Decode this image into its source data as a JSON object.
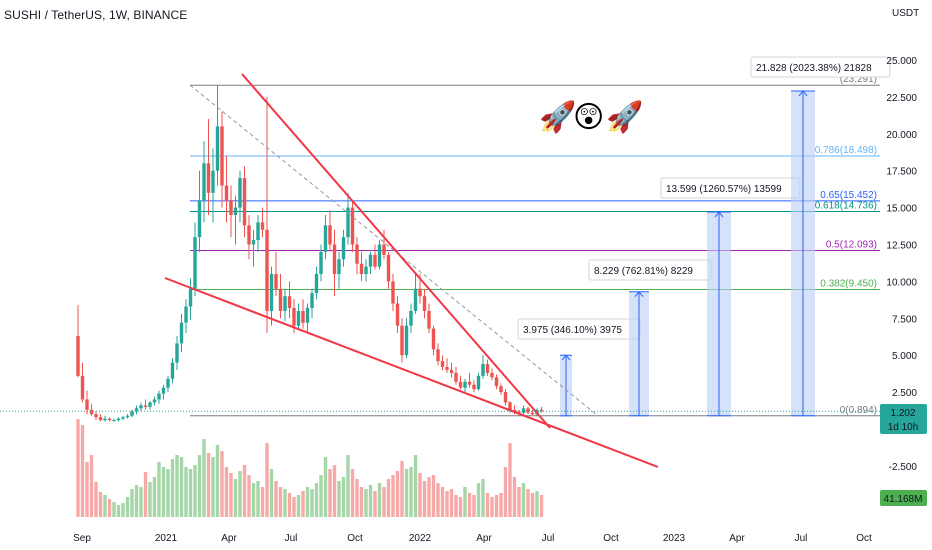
{
  "header": {
    "title": "SUSHI / TetherUS, 1W, BINANCE",
    "unit": "USDT"
  },
  "emoji": [
    "🚀",
    "😲",
    "🚀"
  ],
  "price_badge": {
    "price": "1.202",
    "countdown": "1d 10h"
  },
  "volume_badge": "41.168M",
  "colors": {
    "up": "#26a69a",
    "down": "#ef5350",
    "vol_up": "#a5d6a7",
    "vol_down": "#f7a9a7",
    "trend": "#f23645",
    "target": "#2962ff",
    "target_fill": "#bbcff7",
    "fib_0": "#787b86",
    "fib_0382": "#4caf50",
    "fib_05": "#9c27b0",
    "fib_0618": "#009688",
    "fib_065": "#2962ff",
    "fib_0786": "#64b5f6",
    "fib_1": "#787b86",
    "badge_price": "#26a69a",
    "badge_volume": "#4caf50"
  },
  "chart_data": {
    "type": "candlestick",
    "symbol": "SUSHI / TetherUS",
    "interval": "1W",
    "exchange": "BINANCE",
    "y_unit": "USDT",
    "y_ticks": [
      "25.000",
      "22.500",
      "20.000",
      "17.500",
      "15.000",
      "12.500",
      "10.000",
      "7.500",
      "5.000",
      "2.500",
      "-2.500"
    ],
    "x_ticks": [
      "Sep",
      "2021",
      "Apr",
      "Jul",
      "Oct",
      "2022",
      "Apr",
      "Jul",
      "Oct",
      "2023",
      "Apr",
      "Jul",
      "Oct"
    ],
    "current_price": 1.202,
    "fib_levels": [
      {
        "ratio": "0",
        "price": "0.894",
        "label": "0(0.894)"
      },
      {
        "ratio": "0.382",
        "price": "9.450",
        "label": "0.382(9.450)"
      },
      {
        "ratio": "0.5",
        "price": "12.093",
        "label": "0.5(12.093)"
      },
      {
        "ratio": "0.618",
        "price": "14.736",
        "label": "0.618(14.736)"
      },
      {
        "ratio": "0.65",
        "price": "15.452",
        "label": "0.65(15.452)"
      },
      {
        "ratio": "0.786",
        "price": "18.498",
        "label": "0.786(18.498)"
      },
      {
        "ratio": "1",
        "price": "23.291",
        "label": "(23.291)"
      }
    ],
    "targets": [
      {
        "label": "3.975 (346.10%) 3975",
        "base": 0.894,
        "top": 5.0
      },
      {
        "label": "8.229 (762.81%) 8229",
        "base": 0.894,
        "top": 9.3
      },
      {
        "label": "13.599 (1260.57%) 13599",
        "base": 0.894,
        "top": 14.7
      },
      {
        "label": "21.828 (2023.38%) 21828",
        "base": 0.894,
        "top": 22.9
      }
    ],
    "candles": [
      [
        6.3,
        8.4,
        3.5,
        3.6
      ],
      [
        3.6,
        4.5,
        1.8,
        2.0
      ],
      [
        2.0,
        2.6,
        1.0,
        1.3
      ],
      [
        1.3,
        1.7,
        0.9,
        1.0
      ],
      [
        1.0,
        1.2,
        0.6,
        0.8
      ],
      [
        0.8,
        1.0,
        0.55,
        0.6
      ],
      [
        0.6,
        0.9,
        0.5,
        0.7
      ],
      [
        0.7,
        0.8,
        0.5,
        0.6
      ],
      [
        0.6,
        0.7,
        0.5,
        0.6
      ],
      [
        0.6,
        0.8,
        0.5,
        0.7
      ],
      [
        0.7,
        0.9,
        0.6,
        0.8
      ],
      [
        0.8,
        1.0,
        0.7,
        0.9
      ],
      [
        0.9,
        1.3,
        0.8,
        1.2
      ],
      [
        1.2,
        1.6,
        1.0,
        1.4
      ],
      [
        1.4,
        1.8,
        1.2,
        1.6
      ],
      [
        1.6,
        2.0,
        1.3,
        1.5
      ],
      [
        1.5,
        1.9,
        1.3,
        1.8
      ],
      [
        1.8,
        2.2,
        1.6,
        2.0
      ],
      [
        2.0,
        2.6,
        1.7,
        2.4
      ],
      [
        2.4,
        3.0,
        2.0,
        2.8
      ],
      [
        2.8,
        3.6,
        2.5,
        3.4
      ],
      [
        3.4,
        4.8,
        3.1,
        4.5
      ],
      [
        4.5,
        6.3,
        4.0,
        5.8
      ],
      [
        5.8,
        7.8,
        5.2,
        7.2
      ],
      [
        7.2,
        8.8,
        6.5,
        8.3
      ],
      [
        8.3,
        10.2,
        7.4,
        9.5
      ],
      [
        9.5,
        14.0,
        9.0,
        13.0
      ],
      [
        13.0,
        17.5,
        12.0,
        15.5
      ],
      [
        15.5,
        19.5,
        14.0,
        18.0
      ],
      [
        18.0,
        21.0,
        14.5,
        16.0
      ],
      [
        16.0,
        19.0,
        14.0,
        17.5
      ],
      [
        17.5,
        23.3,
        16.5,
        20.5
      ],
      [
        20.5,
        21.5,
        15.0,
        16.5
      ],
      [
        16.5,
        18.5,
        14.0,
        15.5
      ],
      [
        15.5,
        16.5,
        13.0,
        14.5
      ],
      [
        14.5,
        15.8,
        12.5,
        15.0
      ],
      [
        15.0,
        17.5,
        14.0,
        17.0
      ],
      [
        17.0,
        17.8,
        13.0,
        13.8
      ],
      [
        13.8,
        14.5,
        11.5,
        12.5
      ],
      [
        12.5,
        13.5,
        11.0,
        12.8
      ],
      [
        12.8,
        14.5,
        12.0,
        14.0
      ],
      [
        14.0,
        15.0,
        13.0,
        13.5
      ],
      [
        13.5,
        22.5,
        6.5,
        8.0
      ],
      [
        8.0,
        11.0,
        7.0,
        10.5
      ],
      [
        10.5,
        12.0,
        9.0,
        9.5
      ],
      [
        9.5,
        10.5,
        7.5,
        8.0
      ],
      [
        8.0,
        9.5,
        7.3,
        9.0
      ],
      [
        9.0,
        10.0,
        7.5,
        8.2
      ],
      [
        8.2,
        8.8,
        6.5,
        7.0
      ],
      [
        7.0,
        8.5,
        6.8,
        8.0
      ],
      [
        8.0,
        8.8,
        6.8,
        7.2
      ],
      [
        7.2,
        8.5,
        6.5,
        8.2
      ],
      [
        8.2,
        9.5,
        7.5,
        9.2
      ],
      [
        9.2,
        11.0,
        8.8,
        10.5
      ],
      [
        10.5,
        12.5,
        10.0,
        12.0
      ],
      [
        12.0,
        14.5,
        11.5,
        13.8
      ],
      [
        13.8,
        14.8,
        12.0,
        12.5
      ],
      [
        12.5,
        13.5,
        9.0,
        10.5
      ],
      [
        10.5,
        12.0,
        9.5,
        11.5
      ],
      [
        11.5,
        13.5,
        11.0,
        13.0
      ],
      [
        13.0,
        16.0,
        12.5,
        15.0
      ],
      [
        15.0,
        15.5,
        12.0,
        12.5
      ],
      [
        12.5,
        13.0,
        10.5,
        11.2
      ],
      [
        11.2,
        12.0,
        10.0,
        10.5
      ],
      [
        10.5,
        11.5,
        10.0,
        11.0
      ],
      [
        11.0,
        12.0,
        10.5,
        11.8
      ],
      [
        11.8,
        12.5,
        10.8,
        11.0
      ],
      [
        11.0,
        12.8,
        10.8,
        12.5
      ],
      [
        12.5,
        13.5,
        11.5,
        11.8
      ],
      [
        11.8,
        12.0,
        9.5,
        10.0
      ],
      [
        10.0,
        10.5,
        8.0,
        8.5
      ],
      [
        8.5,
        9.0,
        6.5,
        7.0
      ],
      [
        7.0,
        7.5,
        4.5,
        5.0
      ],
      [
        5.0,
        7.5,
        4.8,
        7.0
      ],
      [
        7.0,
        8.5,
        6.5,
        8.0
      ],
      [
        8.0,
        10.5,
        7.8,
        9.5
      ],
      [
        9.5,
        10.5,
        8.5,
        9.0
      ],
      [
        9.0,
        9.5,
        7.5,
        8.0
      ],
      [
        8.0,
        8.5,
        6.5,
        6.8
      ],
      [
        6.8,
        7.0,
        5.0,
        5.4
      ],
      [
        5.4,
        5.8,
        4.3,
        4.6
      ],
      [
        4.6,
        5.0,
        4.0,
        4.2
      ],
      [
        4.2,
        4.8,
        3.8,
        4.0
      ],
      [
        4.0,
        4.5,
        3.5,
        3.8
      ],
      [
        3.8,
        4.2,
        3.0,
        3.2
      ],
      [
        3.2,
        3.6,
        2.7,
        2.8
      ],
      [
        2.8,
        3.4,
        2.5,
        3.2
      ],
      [
        3.2,
        3.8,
        2.8,
        3.0
      ],
      [
        3.0,
        3.3,
        2.5,
        2.7
      ],
      [
        2.7,
        3.8,
        2.6,
        3.6
      ],
      [
        3.6,
        5.0,
        3.4,
        4.4
      ],
      [
        4.4,
        4.7,
        3.6,
        3.8
      ],
      [
        3.8,
        4.1,
        3.3,
        3.5
      ],
      [
        3.5,
        3.7,
        2.7,
        2.9
      ],
      [
        2.9,
        3.1,
        2.3,
        2.5
      ],
      [
        2.5,
        2.7,
        1.6,
        1.8
      ],
      [
        1.8,
        1.9,
        1.1,
        1.3
      ],
      [
        1.3,
        1.6,
        1.0,
        1.2
      ],
      [
        1.2,
        1.3,
        0.9,
        1.1
      ],
      [
        1.1,
        1.6,
        1.0,
        1.4
      ],
      [
        1.4,
        1.5,
        1.0,
        1.1
      ],
      [
        1.1,
        1.3,
        0.95,
        1.0
      ],
      [
        1.0,
        1.4,
        0.9,
        1.3
      ],
      [
        1.3,
        1.5,
        1.1,
        1.2
      ]
    ],
    "volume_level": [
      0.98,
      0.92,
      0.55,
      0.62,
      0.35,
      0.25,
      0.22,
      0.18,
      0.15,
      0.12,
      0.14,
      0.2,
      0.28,
      0.32,
      0.3,
      0.45,
      0.35,
      0.4,
      0.55,
      0.5,
      0.48,
      0.58,
      0.62,
      0.6,
      0.5,
      0.48,
      0.52,
      0.62,
      0.78,
      0.64,
      0.6,
      0.72,
      0.66,
      0.5,
      0.44,
      0.38,
      0.46,
      0.52,
      0.42,
      0.34,
      0.36,
      0.3,
      0.74,
      0.48,
      0.36,
      0.3,
      0.28,
      0.24,
      0.2,
      0.22,
      0.26,
      0.3,
      0.28,
      0.34,
      0.42,
      0.6,
      0.48,
      0.52,
      0.36,
      0.4,
      0.62,
      0.48,
      0.38,
      0.3,
      0.28,
      0.32,
      0.26,
      0.34,
      0.3,
      0.38,
      0.42,
      0.46,
      0.56,
      0.48,
      0.5,
      0.62,
      0.44,
      0.36,
      0.4,
      0.42,
      0.34,
      0.3,
      0.26,
      0.28,
      0.22,
      0.2,
      0.3,
      0.24,
      0.22,
      0.34,
      0.38,
      0.24,
      0.2,
      0.22,
      0.24,
      0.5,
      0.74,
      0.4,
      0.3,
      0.34,
      0.28,
      0.24,
      0.26,
      0.22
    ]
  }
}
